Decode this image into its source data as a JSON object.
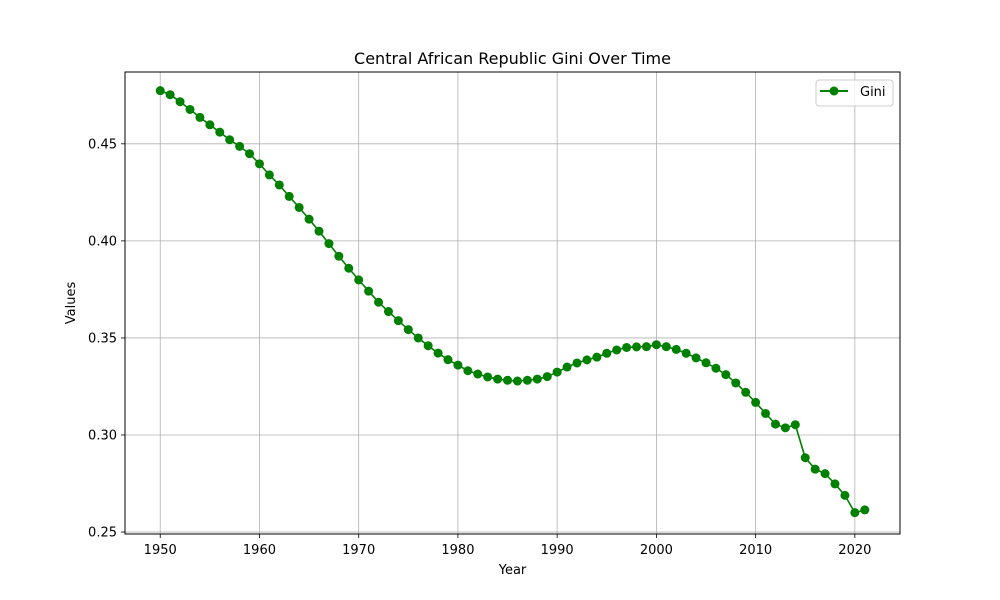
{
  "chart_data": {
    "type": "line",
    "title": "Central African Republic Gini Over Time",
    "xlabel": "Year",
    "ylabel": "Values",
    "xlim": [
      1946.45,
      2024.55
    ],
    "ylim": [
      0.249,
      0.487
    ],
    "xticks": [
      1950,
      1960,
      1970,
      1980,
      1990,
      2000,
      2010,
      2020
    ],
    "yticks": [
      0.25,
      0.3,
      0.35,
      0.4,
      0.45
    ],
    "ytick_labels": [
      "0.25",
      "0.30",
      "0.35",
      "0.40",
      "0.45"
    ],
    "grid": true,
    "legend_position": "top-right",
    "series": [
      {
        "name": "Gini",
        "color": "#008000",
        "marker": "circle",
        "x": [
          1950,
          1951,
          1952,
          1953,
          1954,
          1955,
          1956,
          1957,
          1958,
          1959,
          1960,
          1961,
          1962,
          1963,
          1964,
          1965,
          1966,
          1967,
          1968,
          1969,
          1970,
          1971,
          1972,
          1973,
          1974,
          1975,
          1976,
          1977,
          1978,
          1979,
          1980,
          1981,
          1982,
          1983,
          1984,
          1985,
          1986,
          1987,
          1988,
          1989,
          1990,
          1991,
          1992,
          1993,
          1994,
          1995,
          1996,
          1997,
          1998,
          1999,
          2000,
          2001,
          2002,
          2003,
          2004,
          2005,
          2006,
          2007,
          2008,
          2009,
          2010,
          2011,
          2012,
          2013,
          2014,
          2015,
          2016,
          2017,
          2018,
          2019,
          2020,
          2021
        ],
        "values": [
          0.4774,
          0.4753,
          0.4717,
          0.4677,
          0.4636,
          0.4598,
          0.456,
          0.4521,
          0.4487,
          0.4449,
          0.4397,
          0.434,
          0.4288,
          0.4229,
          0.4172,
          0.4112,
          0.405,
          0.3986,
          0.3921,
          0.3859,
          0.3799,
          0.3741,
          0.3684,
          0.3636,
          0.3589,
          0.3543,
          0.35,
          0.346,
          0.3422,
          0.3388,
          0.336,
          0.3331,
          0.3314,
          0.3299,
          0.3288,
          0.3282,
          0.3278,
          0.3282,
          0.3288,
          0.3301,
          0.3324,
          0.335,
          0.3371,
          0.3387,
          0.3401,
          0.3421,
          0.3438,
          0.3451,
          0.3454,
          0.3455,
          0.3465,
          0.3455,
          0.3441,
          0.3421,
          0.3397,
          0.3372,
          0.3344,
          0.3311,
          0.3268,
          0.322,
          0.3168,
          0.3111,
          0.3056,
          0.3037,
          0.3053,
          0.2883,
          0.2824,
          0.2801,
          0.2748,
          0.2689,
          0.26,
          0.2614
        ]
      }
    ]
  }
}
